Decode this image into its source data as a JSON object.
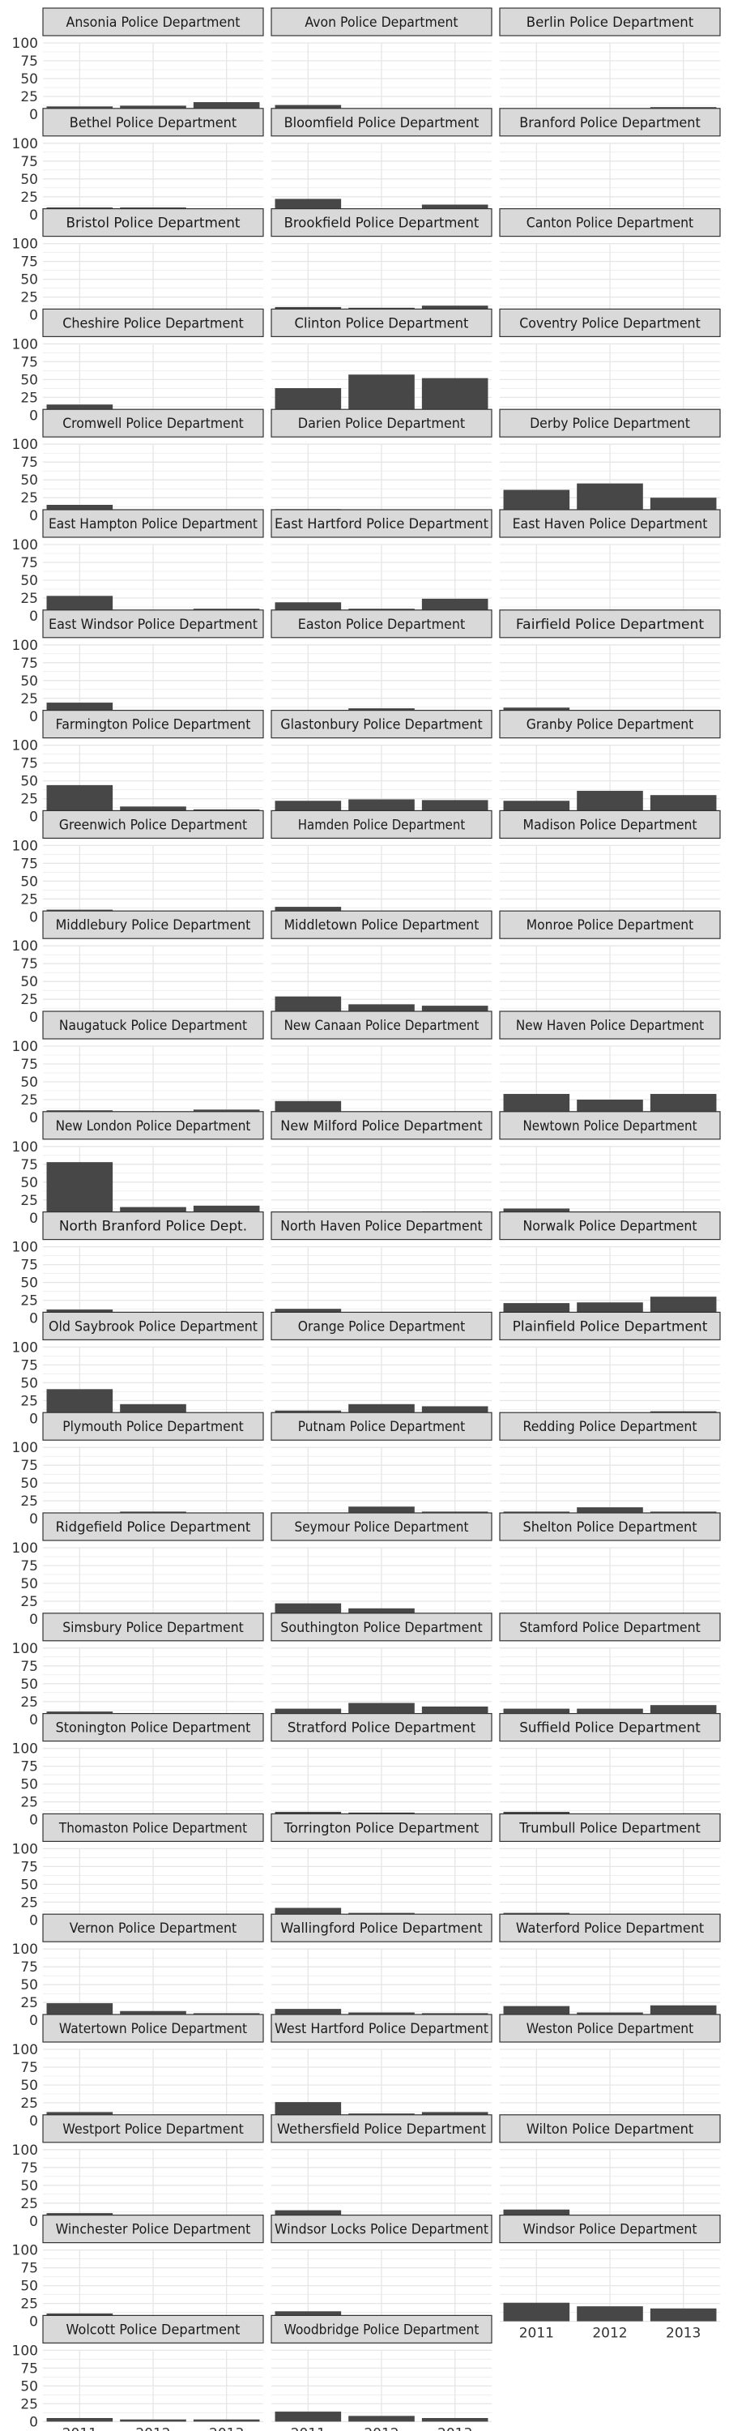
{
  "chart_data": {
    "type": "bar",
    "layout": "facet-grid",
    "categories": [
      "2011",
      "2012",
      "2013"
    ],
    "y_ticks": [
      0,
      25,
      50,
      75,
      100
    ],
    "ylim": [
      0,
      100
    ],
    "grid": true,
    "bar_color": "#474747",
    "strip_fill": "#d9d9d9",
    "strip_border": "#333333",
    "grid_color": "#e6e6e6",
    "panels": [
      {
        "name": "Ansonia Police Department",
        "values": [
          11,
          12,
          17
        ]
      },
      {
        "name": "Avon Police Department",
        "values": [
          13,
          6,
          4
        ]
      },
      {
        "name": "Berlin Police Department",
        "values": [
          8,
          5,
          10
        ]
      },
      {
        "name": "Bethel Police Department",
        "values": [
          10,
          10,
          6
        ]
      },
      {
        "name": "Bloomfield Police Department",
        "values": [
          22,
          7,
          14
        ]
      },
      {
        "name": "Branford Police Department",
        "values": [
          5,
          5,
          5
        ]
      },
      {
        "name": "Bristol Police Department",
        "values": [
          6,
          4,
          5
        ]
      },
      {
        "name": "Brookfield Police Department",
        "values": [
          11,
          10,
          13
        ]
      },
      {
        "name": "Canton Police Department",
        "values": [
          3,
          3,
          5
        ]
      },
      {
        "name": "Cheshire Police Department",
        "values": [
          15,
          3,
          2
        ]
      },
      {
        "name": "Clinton Police Department",
        "values": [
          38,
          57,
          52
        ]
      },
      {
        "name": "Coventry Police Department",
        "values": [
          8,
          2,
          1
        ]
      },
      {
        "name": "Cromwell Police Department",
        "values": [
          15,
          4,
          7
        ]
      },
      {
        "name": "Darien Police Department",
        "values": [
          9,
          2,
          7
        ]
      },
      {
        "name": "Derby Police Department",
        "values": [
          36,
          45,
          25
        ]
      },
      {
        "name": "East Hampton Police Department",
        "values": [
          28,
          1,
          10
        ]
      },
      {
        "name": "East Hartford Police Department",
        "values": [
          19,
          10,
          24
        ]
      },
      {
        "name": "East Haven Police Department",
        "values": [
          8,
          3,
          5
        ]
      },
      {
        "name": "East Windsor Police Department",
        "values": [
          19,
          4,
          4
        ]
      },
      {
        "name": "Easton Police Department",
        "values": [
          1,
          11,
          1
        ]
      },
      {
        "name": "Fairfield Police Department",
        "values": [
          12,
          4,
          3
        ]
      },
      {
        "name": "Farmington Police Department",
        "values": [
          44,
          14,
          10
        ]
      },
      {
        "name": "Glastonbury Police Department",
        "values": [
          22,
          24,
          23
        ]
      },
      {
        "name": "Granby Police Department",
        "values": [
          22,
          36,
          30
        ]
      },
      {
        "name": "Greenwich Police Department",
        "values": [
          10,
          8,
          6
        ]
      },
      {
        "name": "Hamden Police Department",
        "values": [
          14,
          6,
          4
        ]
      },
      {
        "name": "Madison Police Department",
        "values": [
          3,
          3,
          2
        ]
      },
      {
        "name": "Middlebury Police Department",
        "values": [
          0,
          4,
          2
        ]
      },
      {
        "name": "Middletown Police Department",
        "values": [
          29,
          18,
          16
        ]
      },
      {
        "name": "Monroe Police Department",
        "values": [
          7,
          0,
          2
        ]
      },
      {
        "name": "Naugatuck Police Department",
        "values": [
          10,
          7,
          11
        ]
      },
      {
        "name": "New Canaan Police Department",
        "values": [
          23,
          5,
          6
        ]
      },
      {
        "name": "New Haven Police Department",
        "values": [
          33,
          25,
          33
        ]
      },
      {
        "name": "New London Police Department",
        "values": [
          78,
          15,
          17
        ]
      },
      {
        "name": "New Milford Police Department",
        "values": [
          6,
          6,
          9
        ]
      },
      {
        "name": "Newtown Police Department",
        "values": [
          13,
          5,
          2
        ]
      },
      {
        "name": "North Branford Police Dept.",
        "values": [
          12,
          1,
          2
        ]
      },
      {
        "name": "North Haven Police Department",
        "values": [
          13,
          4,
          7
        ]
      },
      {
        "name": "Norwalk Police Department",
        "values": [
          21,
          22,
          30
        ]
      },
      {
        "name": "Old Saybrook Police Department",
        "values": [
          41,
          20,
          8
        ]
      },
      {
        "name": "Orange Police Department",
        "values": [
          11,
          20,
          17
        ]
      },
      {
        "name": "Plainfield Police Department",
        "values": [
          7,
          0,
          10
        ]
      },
      {
        "name": "Plymouth Police Department",
        "values": [
          8,
          10,
          8
        ]
      },
      {
        "name": "Putnam Police Department",
        "values": [
          7,
          17,
          10
        ]
      },
      {
        "name": "Redding Police Department",
        "values": [
          10,
          16,
          10
        ]
      },
      {
        "name": "Ridgefield Police Department",
        "values": [
          7,
          0,
          5
        ]
      },
      {
        "name": "Seymour Police Department",
        "values": [
          22,
          15,
          6
        ]
      },
      {
        "name": "Shelton Police Department",
        "values": [
          3,
          2,
          2
        ]
      },
      {
        "name": "Simsbury Police Department",
        "values": [
          11,
          5,
          2
        ]
      },
      {
        "name": "Southington Police Department",
        "values": [
          15,
          23,
          18
        ]
      },
      {
        "name": "Stamford Police Department",
        "values": [
          15,
          15,
          20
        ]
      },
      {
        "name": "Stonington Police Department",
        "values": [
          6,
          2,
          4
        ]
      },
      {
        "name": "Stratford Police Department",
        "values": [
          11,
          10,
          7
        ]
      },
      {
        "name": "Suffield Police Department",
        "values": [
          11,
          3,
          5
        ]
      },
      {
        "name": "Thomaston Police Department",
        "values": [
          4,
          4,
          7
        ]
      },
      {
        "name": "Torrington Police Department",
        "values": [
          17,
          10,
          7
        ]
      },
      {
        "name": "Trumbull Police Department",
        "values": [
          10,
          7,
          8
        ]
      },
      {
        "name": "Vernon Police Department",
        "values": [
          24,
          13,
          10
        ]
      },
      {
        "name": "Wallingford Police Department",
        "values": [
          16,
          11,
          10
        ]
      },
      {
        "name": "Waterford Police Department",
        "values": [
          20,
          11,
          21
        ]
      },
      {
        "name": "Watertown Police Department",
        "values": [
          12,
          4,
          3
        ]
      },
      {
        "name": "West Hartford Police Department",
        "values": [
          26,
          10,
          12
        ]
      },
      {
        "name": "Weston Police Department",
        "values": [
          2,
          1,
          1
        ]
      },
      {
        "name": "Westport Police Department",
        "values": [
          11,
          4,
          6
        ]
      },
      {
        "name": "Wethersfield Police Department",
        "values": [
          15,
          7,
          7
        ]
      },
      {
        "name": "Wilton Police Department",
        "values": [
          16,
          2,
          0
        ]
      },
      {
        "name": "Winchester Police Department",
        "values": [
          11,
          6,
          6
        ]
      },
      {
        "name": "Windsor Locks Police Department",
        "values": [
          14,
          8,
          2
        ]
      },
      {
        "name": "Windsor Police Department",
        "values": [
          26,
          21,
          18
        ]
      },
      {
        "name": "Wolcott Police Department",
        "values": [
          5,
          3,
          3
        ]
      },
      {
        "name": "Woodbridge Police Department",
        "values": [
          14,
          8,
          5
        ]
      }
    ]
  }
}
